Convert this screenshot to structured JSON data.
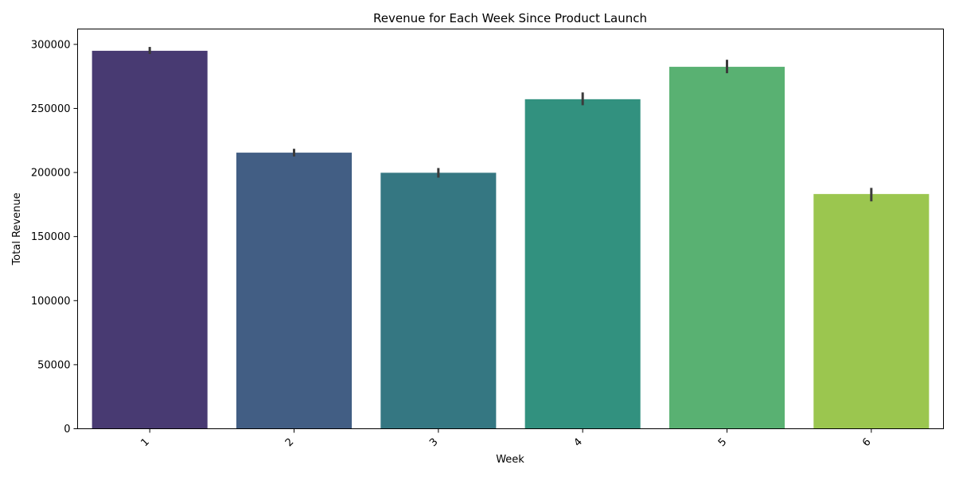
{
  "chart_data": {
    "type": "bar",
    "title": "Revenue for Each Week Since Product Launch",
    "xlabel": "Week",
    "ylabel": "Total Revenue",
    "categories": [
      "1",
      "2",
      "3",
      "4",
      "5",
      "6"
    ],
    "values": [
      295000,
      215500,
      199800,
      257200,
      282500,
      183200
    ],
    "error_bars": [
      [
        292500,
        298000
      ],
      [
        212500,
        218500
      ],
      [
        196000,
        203500
      ],
      [
        252500,
        262500
      ],
      [
        277500,
        288000
      ],
      [
        177500,
        188000
      ]
    ],
    "ylim": [
      0,
      312000
    ],
    "yticks": [
      0,
      50000,
      100000,
      150000,
      200000,
      250000,
      300000
    ],
    "ytick_labels": [
      "0",
      "50000",
      "100000",
      "150000",
      "200000",
      "250000",
      "300000"
    ],
    "colors": [
      "#483a72",
      "#425e84",
      "#357782",
      "#32917f",
      "#59b172",
      "#9bc64f"
    ],
    "error_color": "#3b3b3b",
    "grid": false,
    "legend": "none",
    "xtick_rotation": 45
  }
}
